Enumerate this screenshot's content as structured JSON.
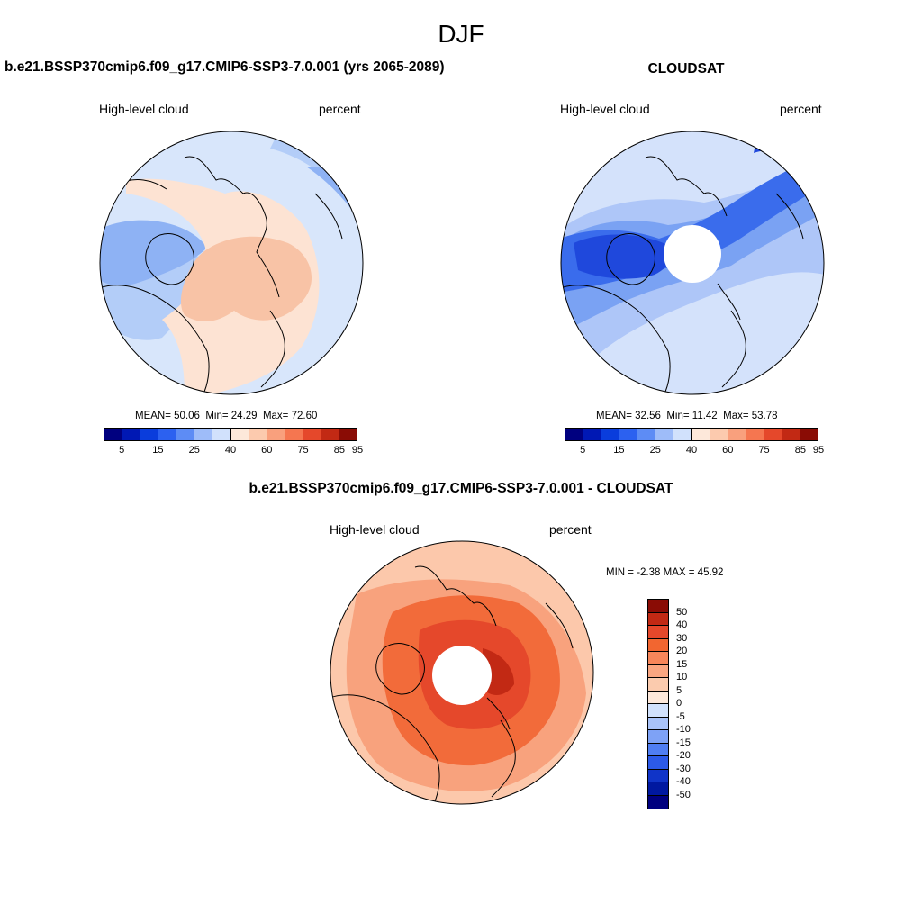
{
  "title": "DJF",
  "panels": {
    "left": {
      "title": "b.e21.BSSP370cmip6.f09_g17.CMIP6-SSP3-7.0.001 (yrs 2065-2089)",
      "variable": "High-level cloud",
      "units": "percent",
      "stats": {
        "mean_label": "MEAN=",
        "mean": "50.06",
        "min_label": "Min=",
        "min": "24.29",
        "max_label": "Max=",
        "max": "72.60"
      }
    },
    "right": {
      "title": "CLOUDSAT",
      "variable": "High-level cloud",
      "units": "percent",
      "stats": {
        "mean_label": "MEAN=",
        "mean": "32.56",
        "min_label": "Min=",
        "min": "11.42",
        "max_label": "Max=",
        "max": "53.78"
      }
    },
    "diff": {
      "title": "b.e21.BSSP370cmip6.f09_g17.CMIP6-SSP3-7.0.001 - CLOUDSAT",
      "variable": "High-level cloud",
      "units": "percent",
      "stats": {
        "min_label": "MIN =",
        "min": "-2.38",
        "max_label": "MAX =",
        "max": "45.92"
      }
    }
  },
  "colorbars": {
    "abs": {
      "colors": [
        "#00007f",
        "#0018b4",
        "#0a3ddc",
        "#2c61f0",
        "#5d8cf5",
        "#9ebcf9",
        "#d1e1fc",
        "#fde8da",
        "#fccaae",
        "#f9a07d",
        "#f57650",
        "#e5482b",
        "#c22914",
        "#8a0c05"
      ],
      "labels": [
        "5",
        "15",
        "25",
        "40",
        "60",
        "75",
        "85",
        "95"
      ]
    },
    "diff": {
      "colors": [
        "#8a0c05",
        "#c22914",
        "#e5482b",
        "#f26630",
        "#f7865a",
        "#f9a681",
        "#fbcbae",
        "#fde8da",
        "#d1e1fc",
        "#a9c3f9",
        "#7ea2f6",
        "#4f7ef3",
        "#2c5ae8",
        "#1034c8",
        "#0018a0",
        "#00007f"
      ],
      "labels": [
        "50",
        "40",
        "30",
        "20",
        "15",
        "10",
        "5",
        "0",
        "-5",
        "-10",
        "-15",
        "-20",
        "-30",
        "-40",
        "-50"
      ]
    }
  },
  "map_colors": {
    "model_bg": "#d8e6fb",
    "model_light_blue": "#b3cdf8",
    "model_mid_blue": "#8eb2f4",
    "model_peach": "#fde3d3",
    "model_salmon": "#f8c3a6",
    "obs_bg": "#d4e2fb",
    "obs_light_blue": "#aec6f8",
    "obs_mid_blue": "#7aa2f3",
    "obs_blue": "#3a6cec",
    "obs_dark_blue": "#1f48dc",
    "diff_bg": "#fcc8ab",
    "diff_orange": "#f8a27d",
    "diff_deep": "#f26b3a",
    "diff_red": "#e5482b",
    "diff_dark": "#c22914",
    "coast": "#000000"
  }
}
